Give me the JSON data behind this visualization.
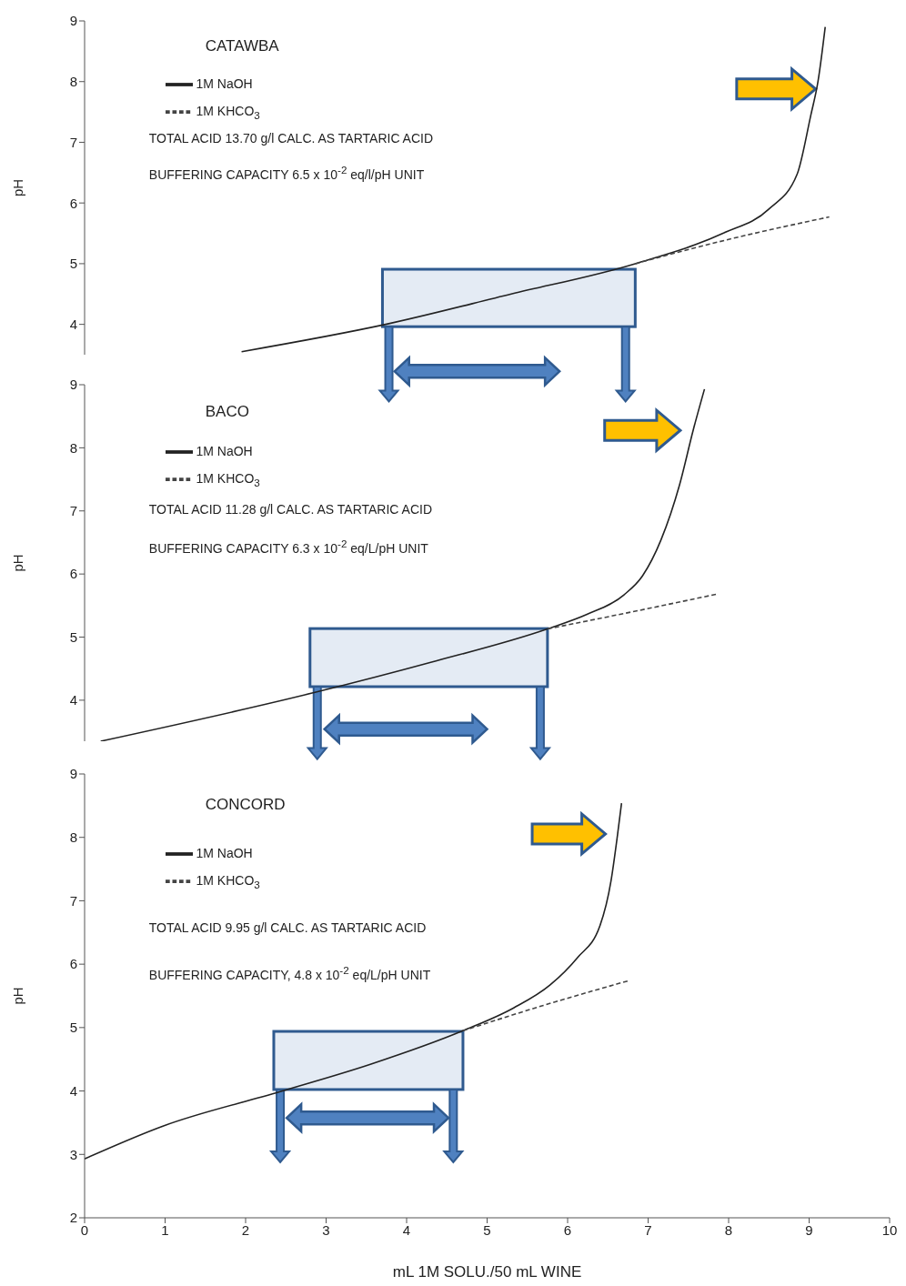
{
  "chart_data": [
    {
      "type": "line",
      "title": "CATAWBA",
      "ylabel": "pH",
      "xlim": [
        0,
        10
      ],
      "ylim": [
        3.5,
        9
      ],
      "yticks": [
        4,
        5,
        6,
        7,
        8,
        9
      ],
      "tick_labels": "y",
      "grid": false,
      "legend": "top left",
      "marker": "none",
      "annotations": [
        "TOTAL ACID 13.70 g/l CALC. AS TARTARIC ACID",
        "BUFFERING CAPACITY 6.5 x 10$^{-2}$ eq/l/pH UNIT"
      ],
      "series": [
        {
          "name": "1M NaOH",
          "color": "#222222",
          "line_style": "solid",
          "x": [
            1.95,
            3.74,
            5.3,
            6.84,
            7.93,
            8.5,
            8.85,
            9.02,
            9.11,
            9.2
          ],
          "values": [
            3.55,
            4.0,
            4.5,
            5.0,
            5.5,
            5.9,
            6.47,
            7.44,
            8.0,
            8.9
          ]
        },
        {
          "name": "1M KHCO$_{3}$",
          "color": "#444444",
          "line_style": "dashed",
          "x": [
            6.84,
            8.0,
            9.25
          ],
          "values": [
            5.0,
            5.4,
            5.77
          ]
        }
      ]
    },
    {
      "type": "line",
      "title": "BACO",
      "ylabel": "pH",
      "xlim": [
        0,
        10
      ],
      "ylim": [
        3.35,
        9
      ],
      "yticks": [
        4,
        5,
        6,
        7,
        8,
        9
      ],
      "tick_labels": "y",
      "grid": false,
      "legend": "top left",
      "marker": "none",
      "annotations": [
        "TOTAL ACID 11.28 g/l CALC. AS TARTARIC ACID",
        "BUFFERING CAPACITY 6.3 x 10$^{-2}$ eq/L/pH UNIT"
      ],
      "series": [
        {
          "name": "1M NaOH",
          "color": "#222222",
          "line_style": "solid",
          "x": [
            0.2,
            2.85,
            4.3,
            5.75,
            6.24,
            6.7,
            6.93,
            7.16,
            7.39,
            7.56,
            7.7
          ],
          "values": [
            3.35,
            4.12,
            4.6,
            5.13,
            5.36,
            5.67,
            5.97,
            6.54,
            7.41,
            8.28,
            8.93
          ]
        },
        {
          "name": "1M KHCO$_{3}$",
          "color": "#444444",
          "line_style": "dashed",
          "x": [
            5.75,
            6.8,
            7.85
          ],
          "values": [
            5.13,
            5.4,
            5.68
          ]
        }
      ]
    },
    {
      "type": "line",
      "title": "CONCORD",
      "xlabel": "mL 1M SOLU./50 mL WINE",
      "ylabel": "pH",
      "xlim": [
        0,
        10
      ],
      "xticks": [
        0,
        1,
        2,
        3,
        4,
        5,
        6,
        7,
        8,
        9,
        10
      ],
      "ylim": [
        2,
        9
      ],
      "yticks": [
        2,
        3,
        4,
        5,
        6,
        7,
        8,
        9
      ],
      "grid": false,
      "legend": "top left",
      "marker": "none",
      "annotations": [
        "TOTAL ACID 9.95 g/l CALC. AS TARTARIC ACID",
        "BUFFERING CAPACITY, 4.8 x 10$^{-2}$ eq/L/pH UNIT"
      ],
      "series": [
        {
          "name": "1M NaOH",
          "color": "#222222",
          "line_style": "solid",
          "x": [
            0,
            0.98,
            2.43,
            3.55,
            4.7,
            5.33,
            5.78,
            6.12,
            6.4,
            6.54,
            6.62,
            6.67
          ],
          "values": [
            2.93,
            3.45,
            3.99,
            4.42,
            4.95,
            5.31,
            5.67,
            6.1,
            6.6,
            7.32,
            8.04,
            8.54
          ]
        },
        {
          "name": "1M KHCO$_{3}$",
          "color": "#444444",
          "line_style": "dashed",
          "x": [
            4.7,
            5.7,
            6.76
          ],
          "values": [
            4.95,
            5.35,
            5.74
          ]
        }
      ]
    }
  ]
}
